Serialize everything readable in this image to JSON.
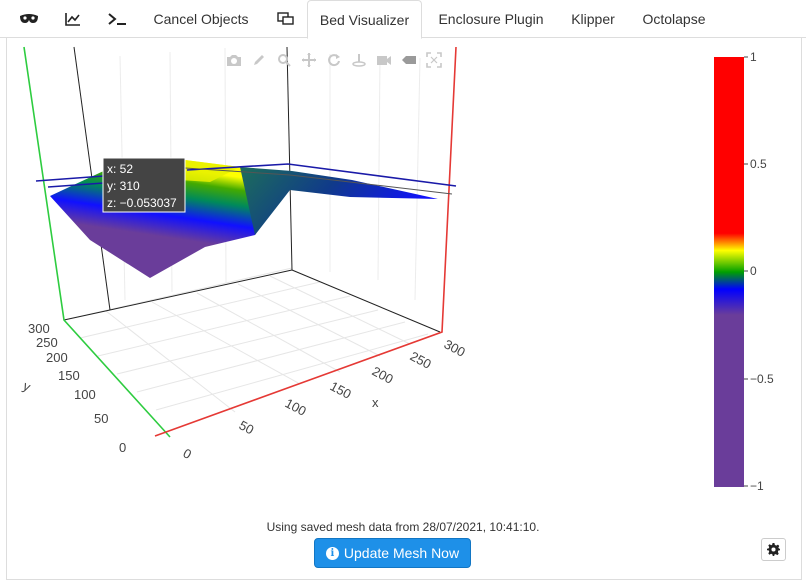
{
  "tabs": [
    {
      "label": "",
      "icon": "mask-icon"
    },
    {
      "label": "",
      "icon": "chart-line-icon"
    },
    {
      "label": "",
      "icon": "terminal-icon"
    },
    {
      "label": "Cancel Objects"
    },
    {
      "label": "",
      "icon": "displays-icon"
    },
    {
      "label": "Bed Visualizer",
      "active": true
    },
    {
      "label": "Enclosure Plugin"
    },
    {
      "label": "Klipper"
    },
    {
      "label": "Octolapse"
    }
  ],
  "modebar": [
    "camera-icon",
    "pencil-icon",
    "zoom-icon",
    "pan-icon",
    "orbit-icon",
    "turntable-icon",
    "reset-camera-icon",
    "reset-icon",
    "autoscale-icon"
  ],
  "plot": {
    "axis_x_title": "x",
    "axis_y_title": "y",
    "x_ticks": [
      "0",
      "50",
      "100",
      "150",
      "200",
      "250",
      "300"
    ],
    "y_ticks": [
      "0",
      "50",
      "100",
      "150",
      "200",
      "250",
      "300"
    ],
    "tooltip": {
      "x": "x: 52",
      "y": "y: 310",
      "z": "z: −0.053037"
    },
    "colorbar_ticks": [
      "1",
      "0.5",
      "0",
      "−0.5",
      "−1"
    ],
    "colorscale": [
      {
        "stop": 0,
        "color": "#6a3d9a"
      },
      {
        "stop": 0.4,
        "color": "#6a3d9a"
      },
      {
        "stop": 0.45,
        "color": "#0000ff"
      },
      {
        "stop": 0.5,
        "color": "#00aa00"
      },
      {
        "stop": 0.55,
        "color": "#ffff00"
      },
      {
        "stop": 0.6,
        "color": "#ff0000"
      },
      {
        "stop": 1,
        "color": "#ff0000"
      }
    ]
  },
  "chart_data": {
    "type": "surface",
    "zlim": [
      -1,
      1
    ],
    "xlim": [
      0,
      300
    ],
    "ylim": [
      0,
      300
    ],
    "highlighted_point": {
      "x": 52,
      "y": 310,
      "z": -0.053037
    }
  },
  "status_text": "Using saved mesh data from 28/07/2021, 10:41:10.",
  "update_button_label": "Update Mesh Now",
  "colors": {
    "accent": "#1e90e8",
    "x_axis": "#e53935",
    "y_axis": "#2ecc40",
    "plane": "#1a1aa8"
  }
}
